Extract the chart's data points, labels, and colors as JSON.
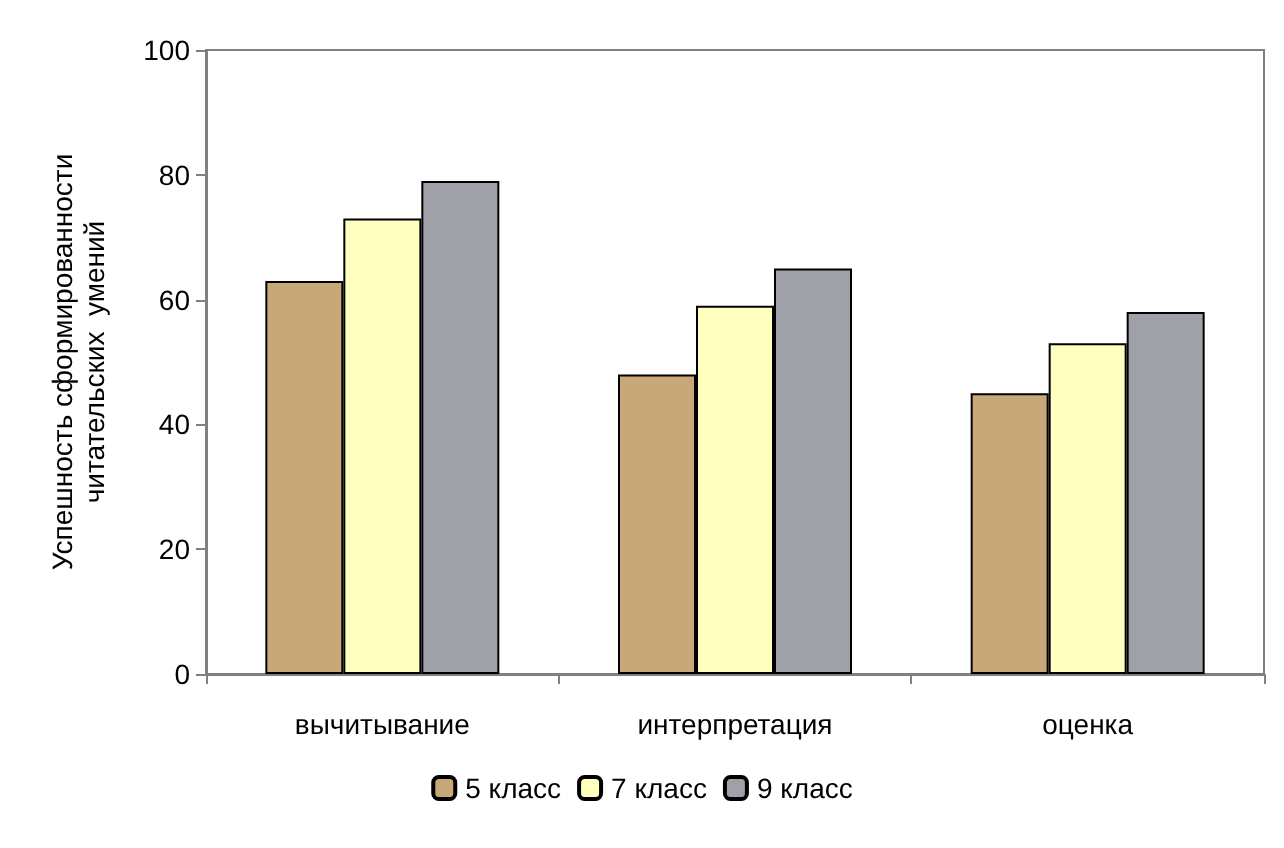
{
  "chart_data": {
    "type": "bar",
    "ylabel": "Успешность сформированности\nчитательских  умений",
    "categories": [
      "вычитывание",
      "интерпретация",
      "оценка"
    ],
    "series": [
      {
        "name": "5 класс",
        "color": "#c8a878",
        "values": [
          63,
          48,
          45
        ]
      },
      {
        "name": "7 класс",
        "color": "#ffffc0",
        "values": [
          73,
          59,
          53
        ]
      },
      {
        "name": "9 класс",
        "color": "#a0a0a8",
        "values": [
          79,
          65,
          58
        ]
      }
    ],
    "ylim": [
      0,
      100
    ],
    "yticks": [
      0,
      20,
      40,
      60,
      80,
      100
    ],
    "grid": false,
    "legend": "bottom"
  }
}
